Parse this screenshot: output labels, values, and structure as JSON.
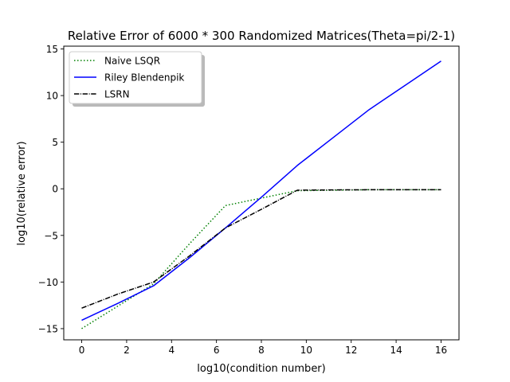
{
  "chart_data": {
    "type": "line",
    "title": "Relative Error of 6000 * 300 Randomized Matrices(Theta=pi/2-1)",
    "xlabel": "log10(condition number)",
    "ylabel": "log10(relative error)",
    "xlim": [
      -0.8,
      16.8
    ],
    "ylim": [
      -16.2,
      15.3
    ],
    "xticks": [
      0,
      2,
      4,
      6,
      8,
      10,
      12,
      14,
      16
    ],
    "yticks": [
      -15,
      -10,
      -5,
      0,
      5,
      10,
      15
    ],
    "grid": false,
    "legend_position": "top-left",
    "series": [
      {
        "name": "Naive LSQR",
        "color": "#008000",
        "style": "dotted",
        "x": [
          0,
          1.6,
          3.2,
          4.8,
          6.4,
          8.0,
          9.6,
          11.2,
          12.8,
          14.4,
          16.0
        ],
        "y": [
          -15.0,
          -12.6,
          -10.2,
          -5.9,
          -1.8,
          -1.0,
          -0.2,
          -0.15,
          -0.1,
          -0.1,
          -0.1
        ]
      },
      {
        "name": "Riley Blendenpik",
        "color": "#0000ff",
        "style": "solid",
        "x": [
          0,
          1.6,
          3.2,
          4.8,
          6.4,
          8.0,
          9.6,
          11.2,
          12.8,
          14.4,
          16.0
        ],
        "y": [
          -14.1,
          -12.3,
          -10.4,
          -7.4,
          -4.2,
          -0.9,
          2.5,
          5.5,
          8.5,
          11.1,
          13.7
        ]
      },
      {
        "name": "LSRN",
        "color": "#000000",
        "style": "dashdot",
        "x": [
          0,
          1.6,
          3.2,
          4.8,
          6.4,
          8.0,
          9.6,
          11.2,
          12.8,
          14.4,
          16.0
        ],
        "y": [
          -12.8,
          -11.3,
          -10.0,
          -7.2,
          -4.2,
          -2.2,
          -0.15,
          -0.12,
          -0.1,
          -0.1,
          -0.1
        ]
      }
    ]
  }
}
